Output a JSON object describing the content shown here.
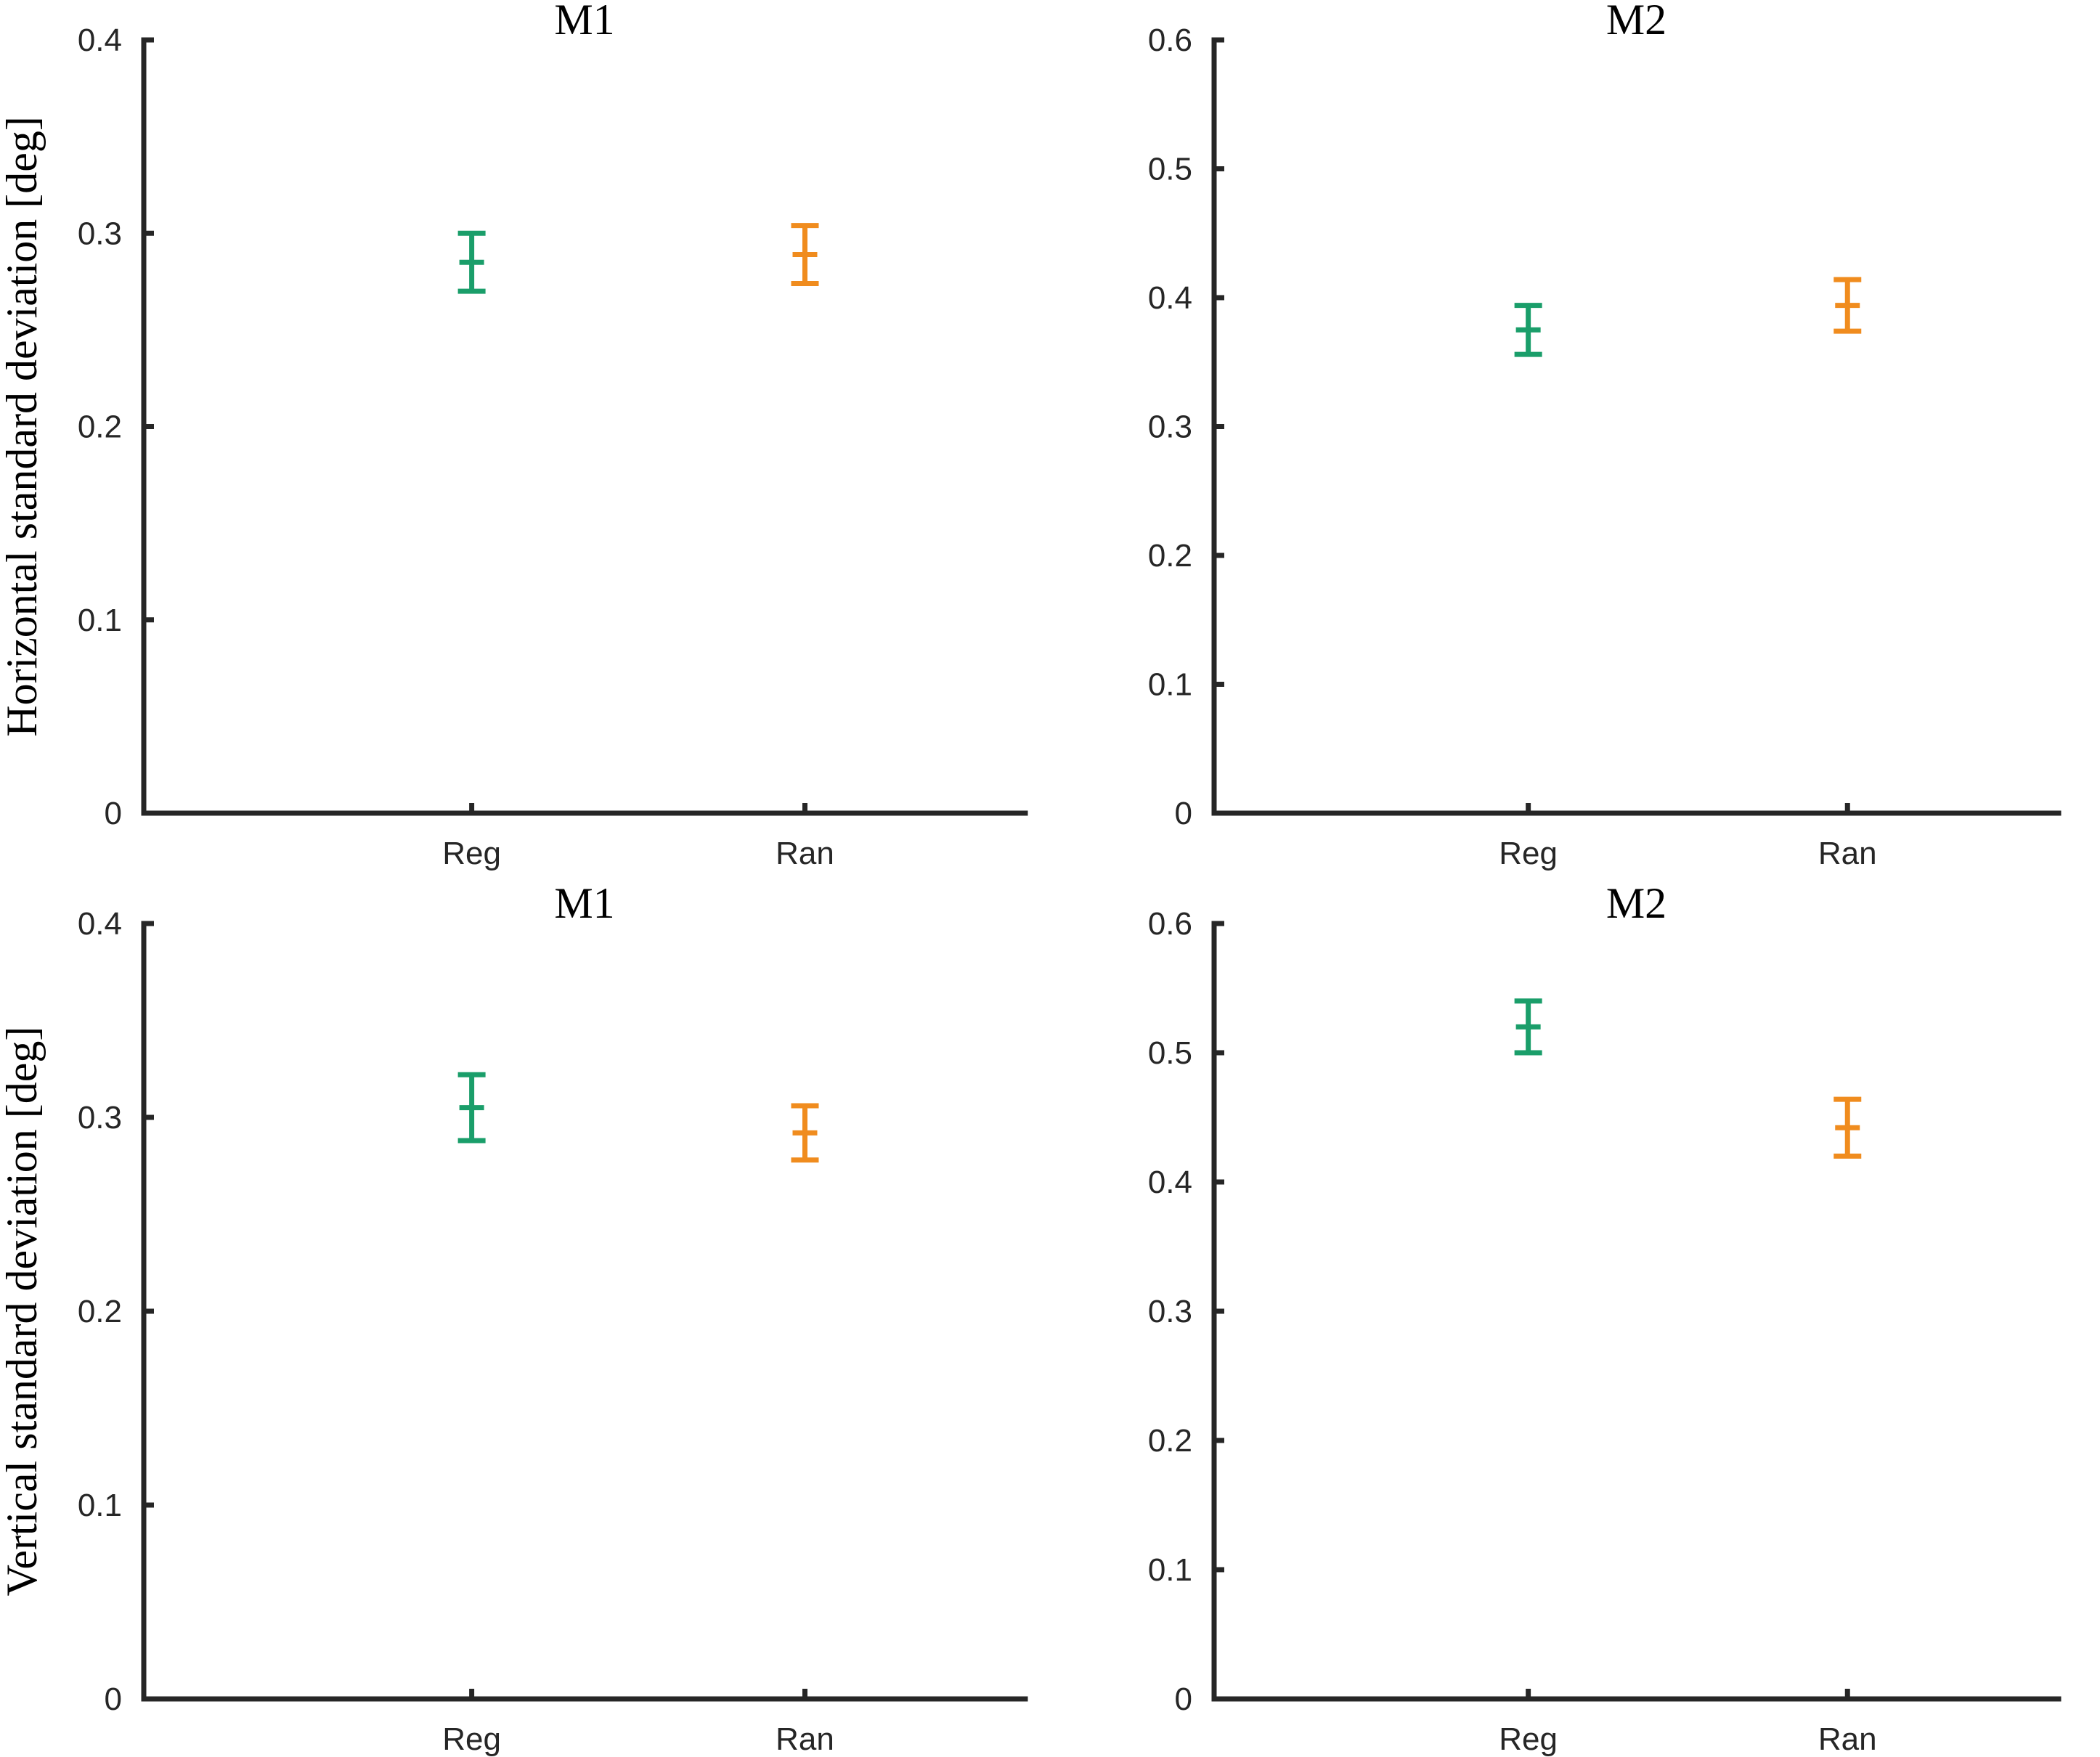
{
  "chart_data": [
    {
      "type": "errorbar",
      "title": "M1",
      "ylabel": "Horizontal standard deviation [deg]",
      "ylim": [
        0,
        0.4
      ],
      "yticks": [
        "0",
        "0.1",
        "0.2",
        "0.3",
        "0.4"
      ],
      "categories": [
        "Reg",
        "Ran"
      ],
      "points": [
        {
          "category": "Reg",
          "mean": 0.285,
          "low": 0.27,
          "high": 0.3,
          "color": "#1a9e6a"
        },
        {
          "category": "Ran",
          "mean": 0.289,
          "low": 0.274,
          "high": 0.304,
          "color": "#f08c1e"
        }
      ]
    },
    {
      "type": "errorbar",
      "title": "M2",
      "ylabel": "",
      "ylim": [
        0,
        0.6
      ],
      "yticks": [
        "0",
        "0.1",
        "0.2",
        "0.3",
        "0.4",
        "0.5",
        "0.6"
      ],
      "categories": [
        "Reg",
        "Ran"
      ],
      "points": [
        {
          "category": "Reg",
          "mean": 0.375,
          "low": 0.356,
          "high": 0.394,
          "color": "#1a9e6a"
        },
        {
          "category": "Ran",
          "mean": 0.394,
          "low": 0.374,
          "high": 0.414,
          "color": "#f08c1e"
        }
      ]
    },
    {
      "type": "errorbar",
      "title": "M1",
      "ylabel": "Vertical standard deviation [deg]",
      "ylim": [
        0,
        0.4
      ],
      "yticks": [
        "0",
        "0.1",
        "0.2",
        "0.3",
        "0.4"
      ],
      "categories": [
        "Reg",
        "Ran"
      ],
      "points": [
        {
          "category": "Reg",
          "mean": 0.305,
          "low": 0.288,
          "high": 0.322,
          "color": "#1a9e6a"
        },
        {
          "category": "Ran",
          "mean": 0.292,
          "low": 0.278,
          "high": 0.306,
          "color": "#f08c1e"
        }
      ]
    },
    {
      "type": "errorbar",
      "title": "M2",
      "ylabel": "",
      "ylim": [
        0,
        0.6
      ],
      "yticks": [
        "0",
        "0.1",
        "0.2",
        "0.3",
        "0.4",
        "0.5",
        "0.6"
      ],
      "categories": [
        "Reg",
        "Ran"
      ],
      "points": [
        {
          "category": "Reg",
          "mean": 0.52,
          "low": 0.5,
          "high": 0.54,
          "color": "#1a9e6a"
        },
        {
          "category": "Ran",
          "mean": 0.442,
          "low": 0.42,
          "high": 0.464,
          "color": "#f08c1e"
        }
      ]
    }
  ]
}
